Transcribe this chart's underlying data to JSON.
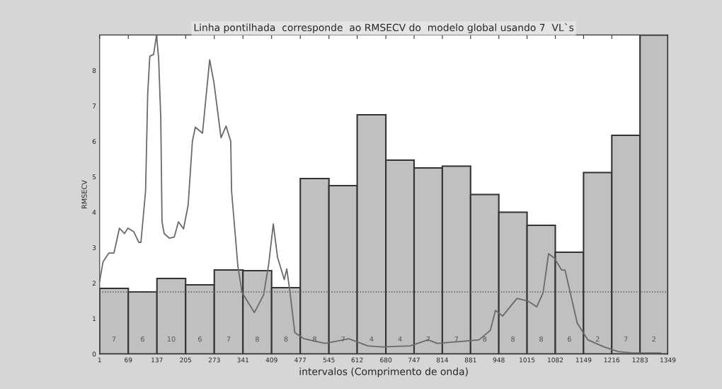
{
  "chart_data": {
    "type": "histogram",
    "title": "Linha pontilhada  corresponde  ao RMSECV do  modelo global usando 7  VL`s",
    "xlabel": "intervalos (Comprimento de onda)",
    "ylabel": "RMSECV",
    "xlim": [
      1,
      1349
    ],
    "ylim": [
      0,
      9
    ],
    "xticks": [
      1,
      69,
      137,
      205,
      273,
      341,
      409,
      477,
      545,
      612,
      680,
      747,
      814,
      881,
      948,
      1015,
      1082,
      1149,
      1216,
      1283,
      1349
    ],
    "yticks": [
      0,
      1,
      2,
      3,
      4,
      5,
      6,
      7,
      8
    ],
    "grid": false,
    "annotations": [
      "7",
      "6",
      "10",
      "6",
      "7",
      "8",
      "8",
      "8",
      "7",
      "4",
      "4",
      "7",
      "7",
      "8",
      "8",
      "8",
      "6",
      "2",
      "7",
      "2"
    ],
    "ref_lines": [
      {
        "axis": "y",
        "value": 1.75,
        "line_style": "dotted",
        "color": "#555555"
      }
    ],
    "series": [
      {
        "color": "#c0c0c0",
        "bins": [
          1,
          69,
          137,
          205,
          273,
          341,
          409,
          477,
          545,
          612,
          680,
          747,
          814,
          881,
          948,
          1015,
          1082,
          1149,
          1216,
          1283,
          1349
        ],
        "values": [
          1.85,
          1.75,
          2.13,
          1.95,
          2.37,
          2.35,
          1.87,
          4.95,
          4.75,
          6.75,
          5.47,
          5.25,
          5.3,
          4.5,
          4.0,
          3.63,
          2.87,
          5.12,
          6.17,
          9.0
        ]
      },
      {
        "type": "line",
        "color": "#6a6a6a",
        "x": [
          1,
          9,
          23,
          35,
          48,
          60,
          68,
          82,
          94,
          99,
          110,
          115,
          120,
          129,
          136,
          141,
          146,
          149,
          154,
          166,
          178,
          188,
          200,
          211,
          221,
          228,
          245,
          262,
          272,
          289,
          301,
          312,
          314,
          329,
          339,
          368,
          390,
          402,
          413,
          423,
          439,
          445,
          452,
          464,
          486,
          536,
          592,
          637,
          671,
          738,
          780,
          802,
          873,
          901,
          928,
          940,
          957,
          991,
          1016,
          1038,
          1053,
          1066,
          1080,
          1097,
          1105,
          1134,
          1159,
          1198,
          1231,
          1265,
          1332
        ],
        "values": [
          2.05,
          2.6,
          2.85,
          2.85,
          3.55,
          3.4,
          3.55,
          3.45,
          3.15,
          3.15,
          4.6,
          7.33,
          8.4,
          8.45,
          9.0,
          8.33,
          6.67,
          3.73,
          3.4,
          3.27,
          3.3,
          3.73,
          3.53,
          4.2,
          6.0,
          6.4,
          6.23,
          8.3,
          7.67,
          6.1,
          6.43,
          6.0,
          4.6,
          2.47,
          1.73,
          1.17,
          1.67,
          2.53,
          3.67,
          2.73,
          2.1,
          2.4,
          1.8,
          0.6,
          0.43,
          0.3,
          0.43,
          0.23,
          0.2,
          0.23,
          0.4,
          0.3,
          0.37,
          0.4,
          0.67,
          1.23,
          1.07,
          1.57,
          1.5,
          1.33,
          1.73,
          2.83,
          2.7,
          2.37,
          2.37,
          0.87,
          0.4,
          0.2,
          0.07,
          0.03,
          0.03
        ]
      }
    ]
  }
}
